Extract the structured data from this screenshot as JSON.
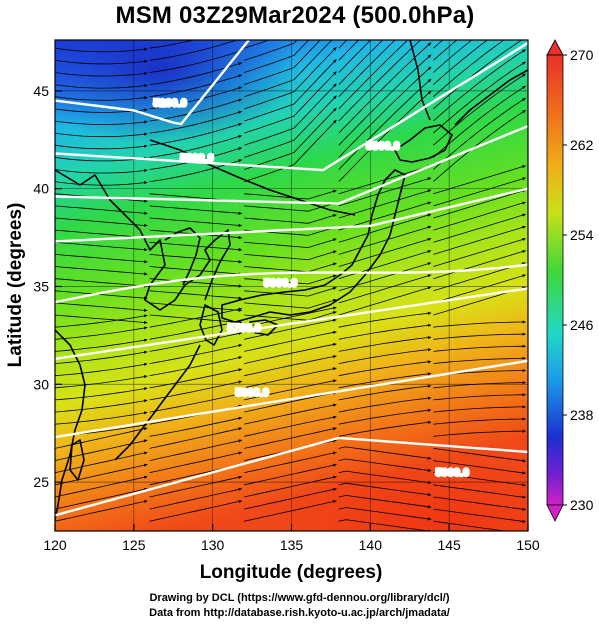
{
  "title": "MSM 03Z29Mar2024 (500.0hPa)",
  "x_axis": {
    "label": "Longitude (degrees)",
    "range": [
      120,
      150
    ],
    "ticks": [
      "120",
      "125",
      "130",
      "135",
      "140",
      "145",
      "150"
    ]
  },
  "y_axis": {
    "label": "Latitude  (degrees)",
    "range": [
      22.5,
      47.6
    ],
    "ticks": [
      "25",
      "30",
      "35",
      "40",
      "45"
    ]
  },
  "colorbar": {
    "range": [
      230,
      270
    ],
    "ticks": [
      "270",
      "262",
      "254",
      "246",
      "238",
      "230"
    ],
    "units": "",
    "extend": "both"
  },
  "contours": {
    "color": "#ffffff",
    "lines": [
      {
        "value": 5200,
        "label": "5200.0"
      },
      {
        "value": 5300,
        "label": "5300.0"
      },
      {
        "value": 5400,
        "label": "5400.0"
      },
      {
        "value": 5500,
        "label": "5500.0"
      },
      {
        "value": 5600,
        "label": "5600.0"
      },
      {
        "value": 5700,
        "label": "5700.0"
      },
      {
        "value": 5800,
        "label": "5800.0"
      },
      {
        "value": 5900,
        "label": "5900.0"
      }
    ]
  },
  "field": "temperature (shaded) with geopotential height contours and wind streamlines",
  "credits": {
    "line1": "Drawing by DCL (https://www.gfd-dennou.org/library/dcl/)",
    "line2": "Data from http://database.rish.kyoto-u.ac.jp/arch/jmadata/"
  }
}
